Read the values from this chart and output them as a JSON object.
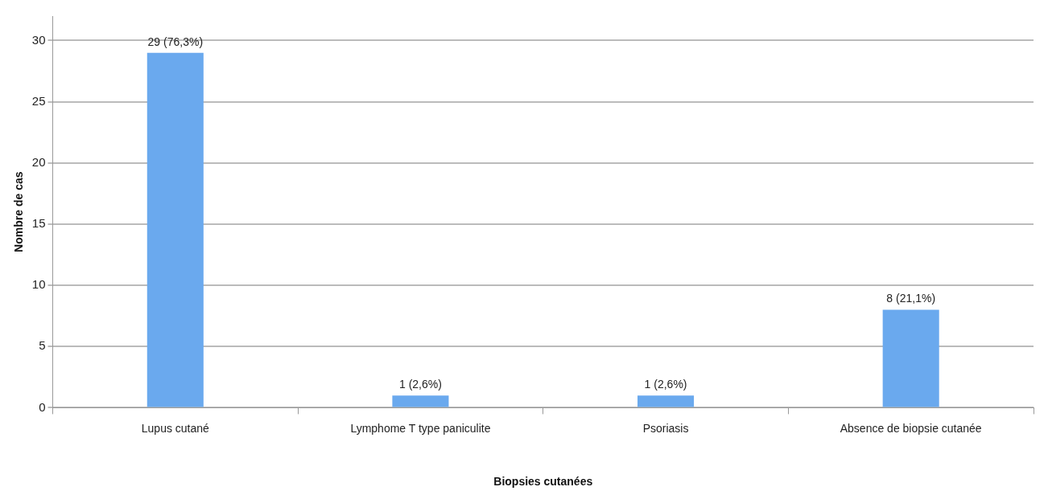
{
  "chart_data": {
    "type": "bar",
    "xlabel": "Biopsies cutanées",
    "ylabel": "Nombre de cas",
    "categories": [
      "Lupus cutané",
      "Lymphome T type paniculite",
      "Psoriasis",
      "Absence de biopsie cutanée"
    ],
    "values": [
      29,
      1,
      1,
      8
    ],
    "color": "#6aa9ee",
    "value_labels": [
      "29 (76,3%)",
      "1 (2,6%)",
      "1 (2,6%)",
      "8 (21,1%)"
    ],
    "ylim": [
      0,
      32
    ],
    "yticks": [
      0,
      5,
      10,
      15,
      20,
      25,
      30
    ],
    "grid": "y",
    "legend": false
  }
}
